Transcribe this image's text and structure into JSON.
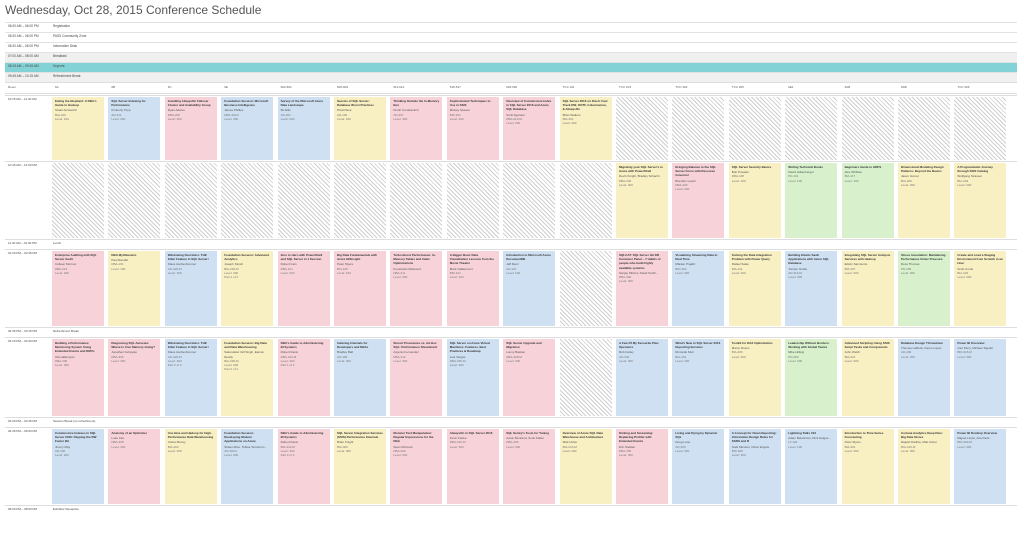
{
  "title": "Wednesday, Oct 28, 2015 Conference Schedule",
  "top_rows": [
    {
      "time": "06:30 AM – 06:00 PM",
      "event": "Registration"
    },
    {
      "time": "06:30 AM – 06:00 PM",
      "event": "PASS Community Zone"
    },
    {
      "time": "06:30 AM – 06:00 PM",
      "event": "Information Desk"
    },
    {
      "time": "07:00 AM – 08:00 AM",
      "event": "Breakfast"
    },
    {
      "time": "08:15 AM – 09:45 AM",
      "event": "Keynote"
    },
    {
      "time": "09:45 AM – 10:15 AM",
      "event": "Refreshment Break"
    }
  ],
  "room_header": {
    "label": "Room",
    "rooms": [
      "6A",
      "6B",
      "6C",
      "6E",
      "602-604",
      "606-609",
      "611-614",
      "615-617",
      "618-620",
      "TCC 101",
      "TCC 103",
      "TCC 304",
      "TCC 305",
      "6E1",
      "6AB",
      "6AB",
      "TCC 306"
    ]
  },
  "sessions": [
    {
      "time": "10:15 AM – 11:30 AM",
      "cells": [
        {
          "title": "Eating the Elephant: A DBA's Guide to Hadoop",
          "speaker": "Stuart Ainsworth",
          "code": "BIA-100",
          "level": "Level: 100",
          "color": "yellow"
        },
        {
          "title": "SQL Server Indexing for Performance",
          "speaker": "Kimberly Tripp",
          "code": "AD-211",
          "level": "Level: 200",
          "color": "blue"
        },
        {
          "title": "Installing AlwaysOn Failover Cluster and Availability Group",
          "speaker": "Ryan Adams",
          "code": "DBA-200",
          "level": "Level: 200",
          "color": "pink"
        },
        {
          "title": "Foundation Session: Microsoft Business Intelligence",
          "speaker": "James Phillips",
          "code": "DBA-300-F",
          "level": "Level: 300",
          "color": "blue"
        },
        {
          "title": "Survey of the Microsoft Azure Data Landscape",
          "speaker": "Bo Ellis",
          "code": "AD-201",
          "level": "Level: 200",
          "color": "blue"
        },
        {
          "title": "Secrets of SQL Server: Database Worst Practices",
          "speaker": "Pinal Dave",
          "code": "AD-100",
          "level": "Level: 100",
          "color": "yellow"
        },
        {
          "title": "Thinking Outside the In-Memory Box",
          "speaker": "Dmitri Korotkevitch",
          "code": "AD-307",
          "level": "Level: 300",
          "color": "pink"
        },
        {
          "title": "Sophisticated Techniques to Use in SSIS",
          "speaker": "Mickey Stuewe",
          "code": "BID-201",
          "level": "Level: 200",
          "color": "pink"
        },
        {
          "title": "Overview of Columnstore Index in SQL Server 2016 and Azure SQL Database",
          "speaker": "Sunil Agarwal",
          "code": "DBA-219-M",
          "level": "Level: 200",
          "color": "pink"
        },
        {
          "title": "SQL Server 2016 on Flash: Fast Track DW, OOTF, Columnstore, & AlwaysOn",
          "speaker": "Brian Walters",
          "code": "BIA-301",
          "level": "Level: 300",
          "color": "yellow"
        },
        {
          "title": "",
          "color": "empty"
        },
        {
          "title": "",
          "color": "empty"
        },
        {
          "title": "",
          "color": "empty"
        },
        {
          "title": "",
          "color": "empty"
        },
        {
          "title": "",
          "color": "empty"
        },
        {
          "title": "",
          "color": "empty"
        },
        {
          "title": "",
          "color": "empty"
        }
      ]
    },
    {
      "time": "10:45 AM – 12:00 PM",
      "cells": [
        {
          "title": "",
          "color": "empty"
        },
        {
          "title": "",
          "color": "empty"
        },
        {
          "title": "",
          "color": "empty"
        },
        {
          "title": "",
          "color": "empty"
        },
        {
          "title": "",
          "color": "empty"
        },
        {
          "title": "",
          "color": "empty"
        },
        {
          "title": "",
          "color": "empty"
        },
        {
          "title": "",
          "color": "empty"
        },
        {
          "title": "",
          "color": "empty"
        },
        {
          "title": "",
          "color": "empty"
        },
        {
          "title": "Migrating your SQL Server's to Azure with PowerShell",
          "speaker": "Devin Knight, Bradley Schacht",
          "code": "DBA-230",
          "level": "Level: 200",
          "color": "yellow"
        },
        {
          "title": "Bringing Balance to the SQL Server Force with Resource Governor",
          "speaker": "Brandon Leach",
          "code": "DBA-206",
          "level": "Level: 200",
          "color": "pink"
        },
        {
          "title": "SQL Server Security Basics",
          "speaker": "Bob Pusateri",
          "code": "DBA-108",
          "level": "Level: 100",
          "color": "yellow"
        },
        {
          "title": "Writing Technical Books",
          "speaker": "David Hollenberger",
          "code": "PD-101",
          "level": "Level: 100",
          "color": "green"
        },
        {
          "title": "Beginners Guide to HDFS",
          "speaker": "Alex Whittles",
          "code": "BIA-117",
          "level": "Level: 100",
          "color": "green"
        },
        {
          "title": "Dimensional Modeling Design Patterns: Beyond the Basics",
          "speaker": "Jason Horner",
          "code": "BIA-200",
          "level": "Level: 200",
          "color": "yellow"
        },
        {
          "title": "A Programmatic Journey through SSIS Catalog",
          "speaker": "Wolfgang Strasser",
          "code": "BIA-203",
          "level": "Level: 200",
          "color": "yellow"
        }
      ]
    },
    {
      "time": "11:30 AM – 01:30 PM",
      "event": "Lunch"
    },
    {
      "time": "01:30 PM – 02:45 PM",
      "cells": [
        {
          "title": "Enterprise Auditing with SQL Server Audit",
          "speaker": "Colleen Morrow",
          "code": "DBA-213",
          "level": "Level: 200",
          "color": "pink"
        },
        {
          "title": "DBA Mythbusters",
          "speaker": "Paul Randal",
          "code": "DBA-101",
          "level": "Level: 100",
          "color": "yellow"
        },
        {
          "title": "Windowing Functions: THE Killer Feature in SQL Server!",
          "speaker": "Klaus Aschenbrenner",
          "code": "AD-318-M",
          "level": "Level: 300",
          "color": "blue"
        },
        {
          "title": "Foundation Session: Advanced Analytics",
          "speaker": "Joseph Sirosh",
          "code": "BIA-229-M",
          "level": "Level: 300",
          "part": "Part 1 of 2",
          "color": "yellow"
        },
        {
          "title": "Zero to Hero with PowerShell and SQL Server in 1 Session",
          "speaker": "Robert Cain",
          "code": "DBA-101",
          "level": "Level: 300",
          "color": "pink"
        },
        {
          "title": "Big Data Fundamentals with Azure HDInsight",
          "speaker": "Peter Myers",
          "code": "BIA-109",
          "level": "Level: 100",
          "color": "pink"
        },
        {
          "title": "Turbo Boost Performance: In-Memory Tables and Index Optimizations",
          "speaker": "Konstantin Melamud",
          "code": "DBA-211",
          "level": "Level: 200",
          "color": "pink"
        },
        {
          "title": "A Bigger Boat: Data Visualization Lessons from the Movie Theater",
          "speaker": "Mark Vaillancourt",
          "code": "BID-101",
          "level": "Level: 100",
          "color": "pink"
        },
        {
          "title": "Introduction to Microsoft Azure DocumentDB",
          "speaker": "Jeff Renz",
          "code": "AD-101",
          "level": "Level: 100",
          "color": "blue"
        },
        {
          "title": "",
          "color": "empty"
        },
        {
          "title": "SQLCAT: SQL Server HA DR Customer Panel – 7 Habits of people who build highly available systems",
          "speaker": "Sanjay Mishra, David Smith...",
          "code": "DBA-300",
          "level": "Level: 300",
          "color": "pink"
        },
        {
          "title": "Visualizing Streaming Data in Real Time",
          "speaker": "Mladen Prajdić",
          "code": "BID-300",
          "level": "Level: 300",
          "color": "blue"
        },
        {
          "title": "Solving the Data Integration Problem with Power Query",
          "speaker": "Rafael Salas",
          "code": "BIA-211",
          "level": "Level: 200",
          "color": "yellow"
        },
        {
          "title": "Building Elastic SaaS Applications with Azure SQL Database",
          "speaker": "Torsten Grabs",
          "code": "AD-319-M",
          "level": "Level: 300",
          "color": "blue"
        },
        {
          "title": "Integrating SQL Server Analysis Services with Hadoop",
          "speaker": "Edwin Sarmiento",
          "code": "BIA-307",
          "level": "Level: 300",
          "color": "yellow"
        },
        {
          "title": "Stress Inoculation: Maintaining Performance Under Pressure",
          "speaker": "Ross Thomas",
          "code": "PD-205",
          "level": "Level: 200",
          "color": "green"
        },
        {
          "title": "Create and Load a Staging Environment from Scratch in an Hour",
          "speaker": "Scott Currie",
          "code": "BIA-204",
          "level": "Level: 200",
          "color": "yellow"
        }
      ]
    },
    {
      "time": "02:45 PM – 03:15 PM",
      "event": "Refreshment Break"
    },
    {
      "time": "03:15 PM – 04:30 PM",
      "cells": [
        {
          "title": "Building a Performance Monitoring System Using Extended Events and DMVs",
          "speaker": "Ola Hallengren",
          "code": "DBA-306",
          "level": "Level: 300",
          "color": "pink"
        },
        {
          "title": "Diagnosing SQL Amnesia: Where Is Your Memory Going?",
          "speaker": "Jonathan Kehayias",
          "code": "DBA-306",
          "level": "Level: 300",
          "color": "pink"
        },
        {
          "title": "Windowing Functions: THE Killer Feature in SQL Server!",
          "speaker": "Klaus Aschenbrenner",
          "code": "AD-318-M",
          "level": "Level: 300",
          "part": "Part 2 of 2",
          "color": "blue"
        },
        {
          "title": "Foundation Session: Big Data and Data Warehousing",
          "speaker": "Sakundeler Gill Singh, Eamon Reddy",
          "code": "BIA-226-M",
          "level": "Level: 300",
          "part": "Part 2 of 2",
          "color": "yellow"
        },
        {
          "title": "DBA's Guide to Administering BI Systems",
          "speaker": "Robert Davis",
          "code": "DBA-310-M",
          "level": "Level: 300",
          "part": "Part 1 of 2",
          "color": "pink"
        },
        {
          "title": "Indexing Internals for Developers and DBAs",
          "speaker": "Bradley Ball",
          "code": "AD-400",
          "level": "Level: 400",
          "color": "blue"
        },
        {
          "title": "Stored Procedures vs. Ad-Hoc SQL: Performance Showdown!",
          "speaker": "Argenis Fernandez",
          "code": "DBA-312",
          "level": "Level: 300",
          "color": "pink"
        },
        {
          "title": "SQL Server on Azure Virtual Machines: Features, Best Practices & Roadmap",
          "speaker": "Luis Vargas",
          "code": "DBA-325-M",
          "level": "Level: 300",
          "color": "blue"
        },
        {
          "title": "SQL Server Upgrade and Migration",
          "speaker": "Lonny Bastien",
          "code": "DBA-328-M",
          "level": "Level: 300",
          "color": "pink"
        },
        {
          "title": "",
          "color": "empty"
        },
        {
          "title": "A Few Of My Favourite Plan Operators",
          "speaker": "Rob Farley",
          "code": "AD-302",
          "level": "Level: 300",
          "color": "blue"
        },
        {
          "title": "What's New in SQL Server 2016 Reporting Services",
          "speaker": "Riccardo Muti",
          "code": "BIA-204",
          "level": "Level: 200",
          "color": "blue"
        },
        {
          "title": "Toolkit for DAX Optimization",
          "speaker": "Marco Russo",
          "code": "BIA-406",
          "level": "Level: 400",
          "color": "yellow"
        },
        {
          "title": "Leadership Without Borders: Working with Global Teams",
          "speaker": "Mike Hillwig",
          "code": "PD-200",
          "level": "Level: 200",
          "color": "green"
        },
        {
          "title": "Advanced Scripting Using SSIS Script Tasks and Components",
          "speaker": "John Welch",
          "code": "BIA-321",
          "level": "Level: 300",
          "color": "yellow"
        },
        {
          "title": "Database Design Throwdown",
          "speaker": "Thomas LaRock, Karen Lopez",
          "code": "AD-200",
          "level": "Level: 200",
          "color": "blue"
        },
        {
          "title": "Power BI Overview",
          "speaker": "Carl Perry, Michael Tejedor",
          "code": "BID-318-M",
          "level": "Level: 300",
          "color": "blue"
        }
      ]
    },
    {
      "time": "04:30 PM – 04:45 PM",
      "event": "Session Break (no refreshment)"
    },
    {
      "time": "04:45 PM – 06:00 PM",
      "cells": [
        {
          "title": "Columnstore Indexes in SQL Server 2016: Flipping the DW Faster Bit",
          "speaker": "Jimmy May",
          "code": "AD-206",
          "level": "Level: 200",
          "color": "blue"
        },
        {
          "title": "Anatomy of an Optimizer",
          "speaker": "Luke Jian",
          "code": "DBA-308",
          "level": "Level: 300",
          "color": "pink"
        },
        {
          "title": "Use Hive and Hadoop for High-Performance Data Warehousing",
          "speaker": "Carlos Bossy",
          "code": "BIA-202",
          "level": "Level: 200",
          "color": "yellow"
        },
        {
          "title": "Foundation Session: Developing Modern Applications on Azure",
          "speaker": "Shawn Bice, Tobias Ternstrom...",
          "code": "AD-300-F",
          "level": "Level: 300",
          "color": "blue"
        },
        {
          "title": "DBA's Guide to Administering BI Systems",
          "speaker": "Robert Davis",
          "code": "BIA-310-M",
          "level": "Level: 300",
          "part": "Part 2 of 2",
          "color": "pink"
        },
        {
          "title": "SQL Server Integration Services (SSIS) Performance Internals",
          "speaker": "Brian Knight",
          "code": "BIA-400",
          "level": "Level: 400",
          "color": "yellow"
        },
        {
          "title": "Monster Text Manipulation: Regular Expressions for the DBA",
          "speaker": "Sean McCown",
          "code": "DBA-200",
          "level": "Level: 200",
          "color": "pink"
        },
        {
          "title": "AlwaysOn in SQL Server 2016",
          "speaker": "Kevin Farlee",
          "code": "DBA-310-M",
          "level": "Level: 300",
          "color": "pink"
        },
        {
          "title": "SQL Sentry's Tools for Tuning",
          "speaker": "Aaron Bertrand, Scott Fallen",
          "code": "DBA-309",
          "level": "Level: 300",
          "color": "pink"
        },
        {
          "title": "Overview of Azure SQL Data Warehouse and Architecture",
          "speaker": "Matt Usher",
          "code": "BIA-210-M",
          "level": "Level: 200",
          "color": "yellow"
        },
        {
          "title": "Kicking and Screaming: Replacing Profiler with Extended Events",
          "speaker": "Erin Stellato",
          "code": "DBA-305",
          "level": "Level: 300",
          "color": "pink"
        },
        {
          "title": "Living and Dying by Dynamic SQL",
          "speaker": "Doug Lane",
          "code": "AD-300",
          "level": "Level: 300",
          "color": "blue"
        },
        {
          "title": "A Concept for Clean Reporting: Information Design Rules for SSRS and R",
          "speaker": "Gabi Münster, Oliver Engels",
          "code": "BID-300",
          "level": "Level: 300",
          "color": "blue"
        },
        {
          "title": "Lightning Talks 104",
          "speaker": "Adam Belebczuk, Rick Heiges...",
          "code": "LT-104",
          "level": "Level: 100",
          "color": "blue"
        },
        {
          "title": "Introduction to Time Series Forecasting",
          "speaker": "Peter Myers",
          "code": "BIA-301",
          "level": "Level: 300",
          "color": "yellow"
        },
        {
          "title": "Cortana Analytics Deep Dive: Big Data Stores",
          "speaker": "Rajesh Dadhia, Matt Usher",
          "code": "BIA-319-M",
          "level": "Level: 300",
          "color": "yellow"
        },
        {
          "title": "Power BI Desktop Overview",
          "speaker": "Miguel Llopis, Ariel Netz...",
          "code": "BID-309-M",
          "level": "Level: 300",
          "color": "blue"
        }
      ]
    },
    {
      "time": "06:00 PM – 08:00 PM",
      "event": "Exhibitor Reception"
    }
  ]
}
